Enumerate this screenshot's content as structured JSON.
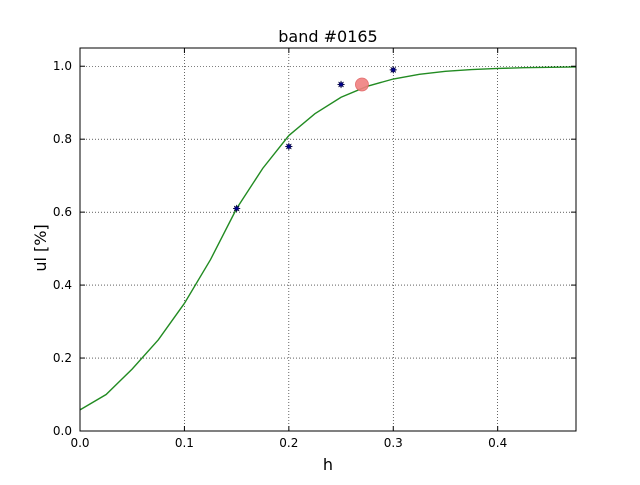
{
  "chart_data": {
    "type": "scatter",
    "title": "band #0165",
    "xlabel": "h",
    "ylabel": "ul [%]",
    "xlim": [
      0.0,
      0.475
    ],
    "ylim": [
      0.0,
      1.05
    ],
    "xticks": [
      0.0,
      0.1,
      0.2,
      0.3,
      0.4
    ],
    "xtick_labels": [
      "0.0",
      "0.1",
      "0.2",
      "0.3",
      "0.4"
    ],
    "yticks": [
      0.0,
      0.2,
      0.4,
      0.6,
      0.8,
      1.0
    ],
    "ytick_labels": [
      "0.0",
      "0.2",
      "0.4",
      "0.6",
      "0.8",
      "1.0"
    ],
    "grid": true,
    "series": [
      {
        "kind": "points",
        "color": "#00008b",
        "marker": "star",
        "x": [
          0.15,
          0.2,
          0.25,
          0.3
        ],
        "y": [
          0.61,
          0.78,
          0.95,
          0.99
        ]
      },
      {
        "kind": "line",
        "color": "#228b22",
        "x": [
          0.0,
          0.025,
          0.05,
          0.075,
          0.1,
          0.125,
          0.15,
          0.175,
          0.2,
          0.225,
          0.25,
          0.275,
          0.3,
          0.325,
          0.35,
          0.375,
          0.4,
          0.425,
          0.45,
          0.475
        ],
        "y": [
          0.058,
          0.1,
          0.17,
          0.25,
          0.35,
          0.47,
          0.61,
          0.72,
          0.81,
          0.87,
          0.915,
          0.945,
          0.965,
          0.978,
          0.986,
          0.991,
          0.994,
          0.996,
          0.997,
          0.998
        ]
      },
      {
        "kind": "highlight",
        "color": "#f08080",
        "x": [
          0.27
        ],
        "y": [
          0.95
        ]
      }
    ]
  }
}
